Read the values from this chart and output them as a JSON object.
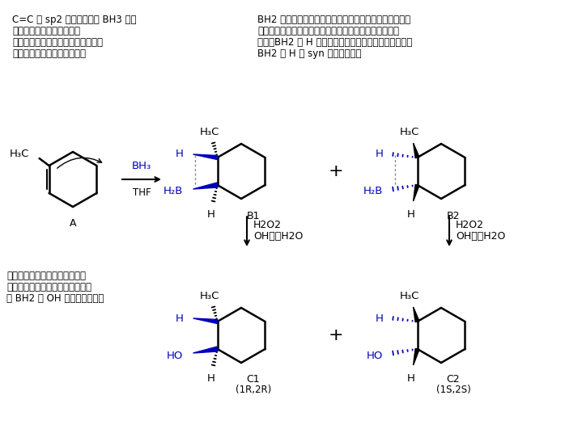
{
  "bg_color": "#ffffff",
  "text_color": "#000000",
  "blue_color": "#0000bb",
  "top_left_text": [
    "C=C の sp2 平面に対して BH3 が上",
    "側または下側に付加する。",
    "この過程で、基質によっては立体異",
    "性体を生じる可能性がある。"
  ],
  "top_right_text": [
    "BH2 が立体障害を避けて置換基の少ない方の炭素に結合",
    "する。このため主生成物が逆マルコフニコフ型となる。",
    "また、BH2 と H がゆるくつながったまま付加するので",
    "BH2 と H の syn 付加となる。"
  ],
  "bottom_left_text": [
    "アルカリ性過酸化水素処理で、",
    "酸化と加水分解が起こり、最終的",
    "に BH2 が OH に置換される。"
  ],
  "label_A": "A",
  "label_B1": "B1",
  "label_B2": "B2",
  "label_C1": "C1",
  "label_C2": "C2",
  "label_1R2R": "(1R,2R)",
  "label_1S2S": "(1S,2S)",
  "oxidation": "H2O2",
  "base": "OH－、H2O",
  "plus": "+"
}
